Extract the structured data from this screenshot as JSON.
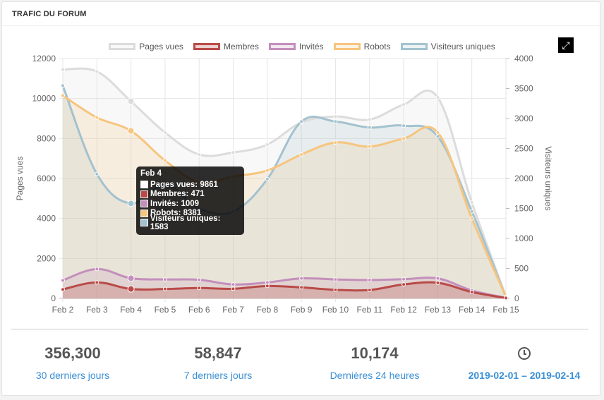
{
  "panel": {
    "title": "TRAFIC DU FORUM"
  },
  "chart_data": {
    "type": "area",
    "categories": [
      "Feb 2",
      "Feb 3",
      "Feb 4",
      "Feb 5",
      "Feb 6",
      "Feb 7",
      "Feb 8",
      "Feb 9",
      "Feb 10",
      "Feb 11",
      "Feb 12",
      "Feb 13",
      "Feb 14",
      "Feb 15"
    ],
    "left_axis": {
      "label": "Pages vues",
      "ticks": [
        0,
        2000,
        4000,
        6000,
        8000,
        10000,
        12000
      ],
      "range": [
        0,
        12000
      ]
    },
    "right_axis": {
      "label": "Visiteurs uniques",
      "ticks": [
        0,
        500,
        1000,
        1500,
        2000,
        2500,
        3000,
        3500,
        4000
      ],
      "range": [
        0,
        4000
      ]
    },
    "legend_position": "top",
    "grid": true,
    "series": [
      {
        "name": "Pages vues",
        "axis": "left",
        "color": "#dcdcdc",
        "fill": "rgba(220,220,220,0.2)",
        "values": [
          11450,
          11350,
          9861,
          8300,
          7200,
          7300,
          7700,
          8800,
          9100,
          8950,
          9700,
          10050,
          4800,
          100
        ]
      },
      {
        "name": "Membres",
        "axis": "left",
        "color": "#b94a48",
        "fill": "rgba(185,74,72,0.25)",
        "values": [
          450,
          800,
          471,
          470,
          520,
          480,
          620,
          550,
          430,
          420,
          700,
          780,
          320,
          20
        ]
      },
      {
        "name": "Invités",
        "axis": "left",
        "color": "#c38fbb",
        "fill": "rgba(195,143,187,0.2)",
        "values": [
          900,
          1470,
          1009,
          950,
          930,
          700,
          800,
          1000,
          950,
          920,
          960,
          1000,
          400,
          30
        ]
      },
      {
        "name": "Robots",
        "axis": "left",
        "color": "#f6c57e",
        "fill": "rgba(246,197,126,0.2)",
        "values": [
          10150,
          9050,
          8381,
          6900,
          5800,
          6100,
          6400,
          7200,
          7800,
          7600,
          8000,
          8300,
          4000,
          80
        ]
      },
      {
        "name": "Visiteurs uniques",
        "axis": "right",
        "color": "#a3c2cf",
        "fill": "rgba(163,194,207,0.2)",
        "values": [
          3550,
          2075,
          1583,
          1900,
          1500,
          1450,
          1990,
          2950,
          2950,
          2850,
          2880,
          2700,
          1450,
          20
        ]
      }
    ]
  },
  "tooltip": {
    "title": "Feb 4",
    "rows": [
      {
        "label": "Pages vues: 9861",
        "color": "#ffffff"
      },
      {
        "label": "Membres: 471",
        "color": "#b94a48"
      },
      {
        "label": "Invités: 1009",
        "color": "#c38fbb"
      },
      {
        "label": "Robots: 8381",
        "color": "#f6c57e"
      },
      {
        "label": "Visiteurs uniques: 1583",
        "color": "#a3c2cf"
      }
    ]
  },
  "stats": [
    {
      "value": "356,300",
      "label": "30 derniers jours"
    },
    {
      "value": "58,847",
      "label": "7 derniers jours"
    },
    {
      "value": "10,174",
      "label": "Dernières 24 heures"
    },
    {
      "icon": "clock-icon",
      "label": "2019-02-01 – 2019-02-14"
    }
  ],
  "controls": {
    "expand_icon": "expand-icon"
  }
}
